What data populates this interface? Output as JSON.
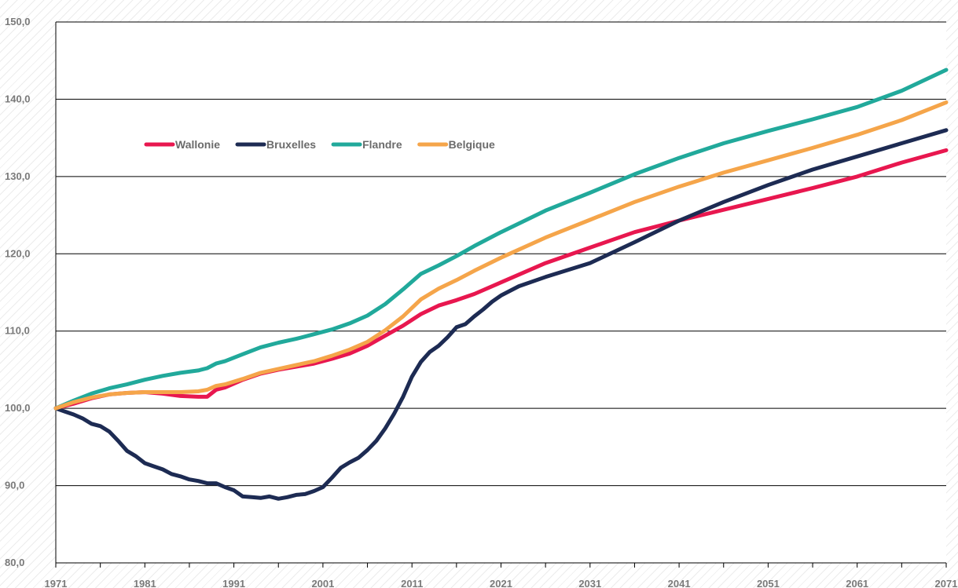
{
  "chart_data": {
    "type": "line",
    "title": "",
    "xlabel": "",
    "ylabel": "",
    "xlim": [
      1971,
      2071
    ],
    "ylim": [
      80,
      150
    ],
    "y_ticks": [
      80,
      90,
      100,
      110,
      120,
      130,
      140,
      150
    ],
    "y_tick_labels": [
      "80,0",
      "90,0",
      "100,0",
      "110,0",
      "120,0",
      "130,0",
      "140,0",
      "150,0"
    ],
    "x_tick_labels": [
      "1971",
      "1981",
      "1991",
      "2001",
      "2011",
      "2021",
      "2031",
      "2041",
      "2051",
      "2061",
      "2071"
    ],
    "grid": "horizontal",
    "legend_position": "top-left",
    "series": [
      {
        "name": "Wallonie",
        "color": "#e8174f",
        "points": [
          [
            1971,
            100.0
          ],
          [
            1973,
            100.6
          ],
          [
            1975,
            101.3
          ],
          [
            1977,
            101.8
          ],
          [
            1979,
            102.0
          ],
          [
            1981,
            102.1
          ],
          [
            1983,
            101.9
          ],
          [
            1985,
            101.6
          ],
          [
            1987,
            101.5
          ],
          [
            1988,
            101.5
          ],
          [
            1989,
            102.4
          ],
          [
            1990,
            102.7
          ],
          [
            1992,
            103.7
          ],
          [
            1994,
            104.5
          ],
          [
            1996,
            105.0
          ],
          [
            1998,
            105.4
          ],
          [
            2000,
            105.8
          ],
          [
            2002,
            106.4
          ],
          [
            2004,
            107.1
          ],
          [
            2006,
            108.1
          ],
          [
            2008,
            109.4
          ],
          [
            2010,
            110.7
          ],
          [
            2012,
            112.2
          ],
          [
            2014,
            113.3
          ],
          [
            2016,
            114.0
          ],
          [
            2018,
            114.8
          ],
          [
            2021,
            116.3
          ],
          [
            2026,
            118.8
          ],
          [
            2031,
            120.8
          ],
          [
            2036,
            122.8
          ],
          [
            2041,
            124.3
          ],
          [
            2046,
            125.7
          ],
          [
            2051,
            127.1
          ],
          [
            2056,
            128.5
          ],
          [
            2061,
            130.0
          ],
          [
            2066,
            131.8
          ],
          [
            2071,
            133.4
          ]
        ]
      },
      {
        "name": "Bruxelles",
        "color": "#1d2b53",
        "points": [
          [
            1971,
            100.0
          ],
          [
            1972,
            99.6
          ],
          [
            1973,
            99.2
          ],
          [
            1974,
            98.7
          ],
          [
            1975,
            98.0
          ],
          [
            1976,
            97.7
          ],
          [
            1977,
            97.0
          ],
          [
            1978,
            95.8
          ],
          [
            1979,
            94.5
          ],
          [
            1980,
            93.8
          ],
          [
            1981,
            92.9
          ],
          [
            1982,
            92.5
          ],
          [
            1983,
            92.1
          ],
          [
            1984,
            91.5
          ],
          [
            1985,
            91.2
          ],
          [
            1986,
            90.8
          ],
          [
            1987,
            90.6
          ],
          [
            1988,
            90.3
          ],
          [
            1989,
            90.3
          ],
          [
            1990,
            89.8
          ],
          [
            1991,
            89.4
          ],
          [
            1992,
            88.6
          ],
          [
            1993,
            88.5
          ],
          [
            1994,
            88.4
          ],
          [
            1995,
            88.6
          ],
          [
            1996,
            88.3
          ],
          [
            1997,
            88.5
          ],
          [
            1998,
            88.8
          ],
          [
            1999,
            88.9
          ],
          [
            2000,
            89.3
          ],
          [
            2001,
            89.8
          ],
          [
            2002,
            91.0
          ],
          [
            2003,
            92.3
          ],
          [
            2004,
            93.0
          ],
          [
            2005,
            93.6
          ],
          [
            2006,
            94.6
          ],
          [
            2007,
            95.8
          ],
          [
            2008,
            97.4
          ],
          [
            2009,
            99.3
          ],
          [
            2010,
            101.5
          ],
          [
            2011,
            104.1
          ],
          [
            2012,
            106.0
          ],
          [
            2013,
            107.3
          ],
          [
            2014,
            108.1
          ],
          [
            2015,
            109.2
          ],
          [
            2016,
            110.5
          ],
          [
            2017,
            110.9
          ],
          [
            2018,
            111.9
          ],
          [
            2019,
            112.8
          ],
          [
            2020,
            113.8
          ],
          [
            2021,
            114.6
          ],
          [
            2023,
            115.8
          ],
          [
            2026,
            117.0
          ],
          [
            2031,
            118.8
          ],
          [
            2036,
            121.5
          ],
          [
            2041,
            124.3
          ],
          [
            2046,
            126.7
          ],
          [
            2051,
            128.9
          ],
          [
            2056,
            130.9
          ],
          [
            2061,
            132.6
          ],
          [
            2066,
            134.3
          ],
          [
            2071,
            136.0
          ]
        ]
      },
      {
        "name": "Flandre",
        "color": "#21a99b",
        "points": [
          [
            1971,
            100.0
          ],
          [
            1973,
            101.0
          ],
          [
            1975,
            101.9
          ],
          [
            1977,
            102.6
          ],
          [
            1979,
            103.1
          ],
          [
            1981,
            103.7
          ],
          [
            1983,
            104.2
          ],
          [
            1985,
            104.6
          ],
          [
            1987,
            104.9
          ],
          [
            1988,
            105.2
          ],
          [
            1989,
            105.8
          ],
          [
            1990,
            106.1
          ],
          [
            1992,
            107.0
          ],
          [
            1994,
            107.9
          ],
          [
            1996,
            108.5
          ],
          [
            1998,
            109.0
          ],
          [
            2000,
            109.6
          ],
          [
            2002,
            110.2
          ],
          [
            2004,
            111.0
          ],
          [
            2006,
            112.0
          ],
          [
            2008,
            113.5
          ],
          [
            2010,
            115.4
          ],
          [
            2012,
            117.4
          ],
          [
            2014,
            118.5
          ],
          [
            2016,
            119.7
          ],
          [
            2018,
            121.0
          ],
          [
            2021,
            122.8
          ],
          [
            2026,
            125.6
          ],
          [
            2031,
            127.9
          ],
          [
            2036,
            130.3
          ],
          [
            2041,
            132.4
          ],
          [
            2046,
            134.3
          ],
          [
            2051,
            135.9
          ],
          [
            2056,
            137.4
          ],
          [
            2061,
            139.0
          ],
          [
            2066,
            141.1
          ],
          [
            2071,
            143.8
          ]
        ]
      },
      {
        "name": "Belgique",
        "color": "#f5a54a",
        "points": [
          [
            1971,
            100.0
          ],
          [
            1973,
            100.8
          ],
          [
            1975,
            101.4
          ],
          [
            1977,
            101.8
          ],
          [
            1979,
            102.0
          ],
          [
            1981,
            102.1
          ],
          [
            1983,
            102.1
          ],
          [
            1985,
            102.1
          ],
          [
            1987,
            102.2
          ],
          [
            1988,
            102.4
          ],
          [
            1989,
            102.9
          ],
          [
            1990,
            103.1
          ],
          [
            1992,
            103.8
          ],
          [
            1994,
            104.6
          ],
          [
            1996,
            105.1
          ],
          [
            1998,
            105.6
          ],
          [
            2000,
            106.1
          ],
          [
            2002,
            106.8
          ],
          [
            2004,
            107.6
          ],
          [
            2006,
            108.6
          ],
          [
            2008,
            110.1
          ],
          [
            2010,
            111.9
          ],
          [
            2012,
            114.1
          ],
          [
            2014,
            115.5
          ],
          [
            2016,
            116.6
          ],
          [
            2018,
            117.8
          ],
          [
            2021,
            119.5
          ],
          [
            2026,
            122.1
          ],
          [
            2031,
            124.4
          ],
          [
            2036,
            126.7
          ],
          [
            2041,
            128.7
          ],
          [
            2046,
            130.5
          ],
          [
            2051,
            132.1
          ],
          [
            2056,
            133.7
          ],
          [
            2061,
            135.4
          ],
          [
            2066,
            137.3
          ],
          [
            2071,
            139.6
          ]
        ]
      }
    ]
  }
}
